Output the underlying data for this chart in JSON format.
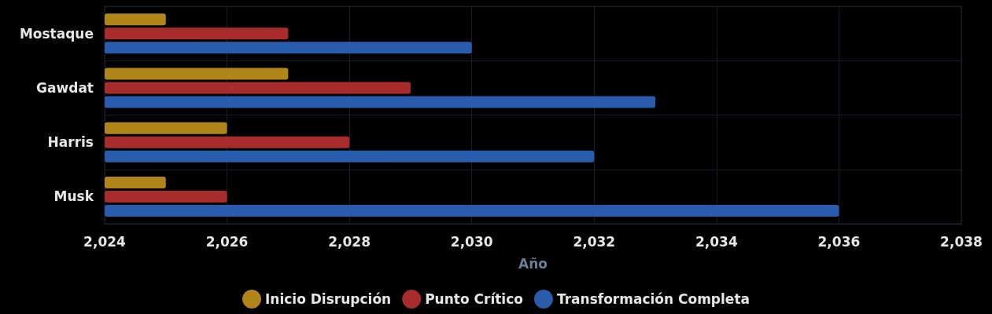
{
  "chart_data": {
    "type": "bar",
    "orientation": "horizontal",
    "xlabel": "Año",
    "categories": [
      "Mostaque",
      "Gawdat",
      "Harris",
      "Musk"
    ],
    "series": [
      {
        "name": "Inicio Disrupción",
        "color": "#b0861a",
        "values": [
          2025,
          2027,
          2026,
          2025
        ]
      },
      {
        "name": "Punto Crítico",
        "color": "#a82c2c",
        "values": [
          2027,
          2029,
          2028,
          2026
        ]
      },
      {
        "name": "Transformación Completa",
        "color": "#2a5cad",
        "values": [
          2030,
          2033,
          2032,
          2036
        ]
      }
    ],
    "xlim": [
      2024,
      2038
    ],
    "xticks": [
      {
        "value": 2024,
        "label": "2,024"
      },
      {
        "value": 2026,
        "label": "2,026"
      },
      {
        "value": 2028,
        "label": "2,028"
      },
      {
        "value": 2030,
        "label": "2,030"
      },
      {
        "value": 2032,
        "label": "2,032"
      },
      {
        "value": 2034,
        "label": "2,034"
      },
      {
        "value": 2036,
        "label": "2,036"
      },
      {
        "value": 2038,
        "label": "2,038"
      }
    ],
    "grid": true,
    "legend": "bottom"
  }
}
